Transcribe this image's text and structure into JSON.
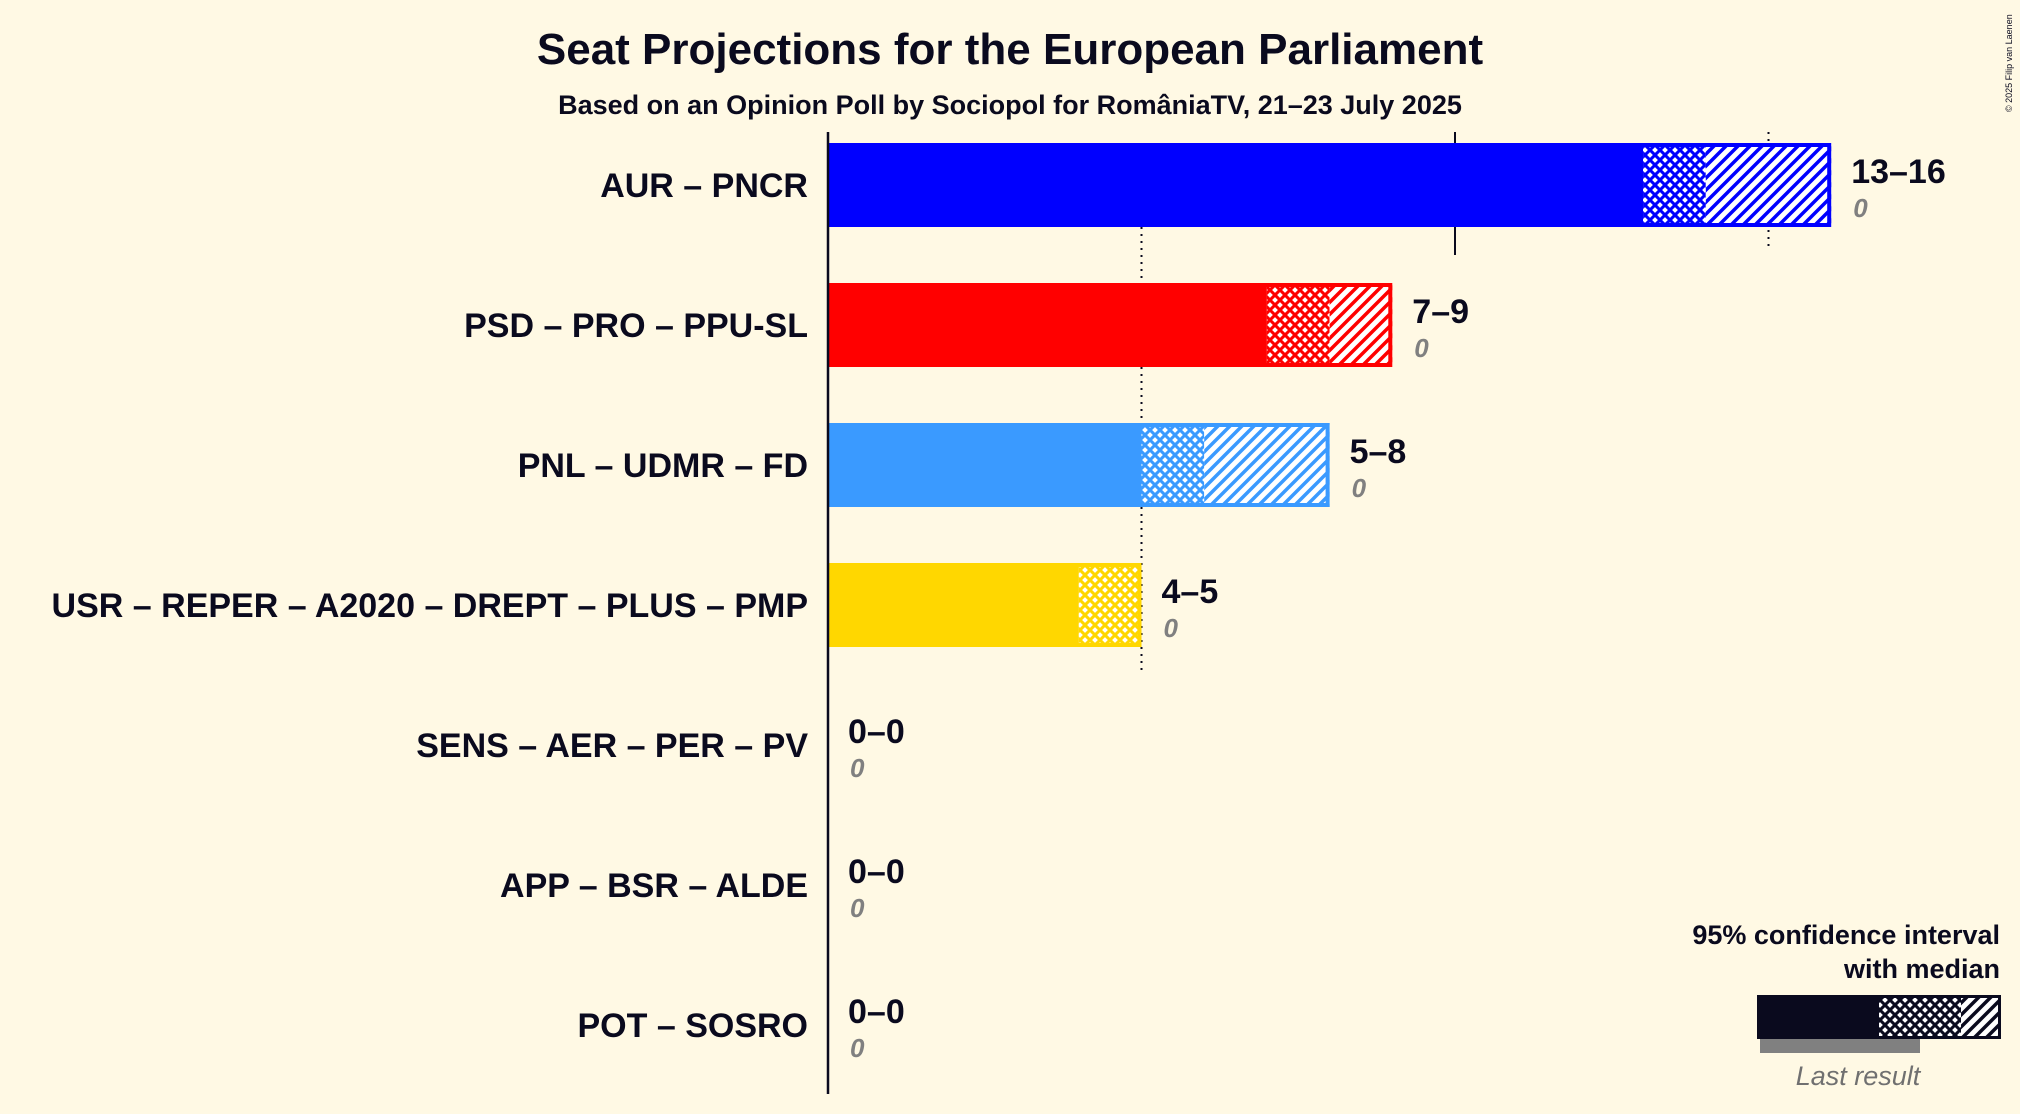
{
  "copyright": "© 2025 Filip van Laenen",
  "chart_data": {
    "type": "bar",
    "orientation": "horizontal",
    "title": "Seat Projections for the European Parliament",
    "subtitle": "Based on an Opinion Poll by Sociopol for RomâniaTV, 21–23 July 2025",
    "gridlines": [
      5,
      10,
      15
    ],
    "xlim": [
      0,
      16
    ],
    "series": [
      {
        "party": "AUR – PNCR",
        "color": "#0000FF",
        "ci_low": 13,
        "median": 14,
        "ci_high": 16,
        "range_label": "13–16",
        "last_result": 0,
        "last_label": "0"
      },
      {
        "party": "PSD – PRO – PPU-SL",
        "color": "#FF0000",
        "ci_low": 7,
        "median": 8,
        "ci_high": 9,
        "range_label": "7–9",
        "last_result": 0,
        "last_label": "0"
      },
      {
        "party": "PNL – UDMR – FD",
        "color": "#3A9AFF",
        "ci_low": 5,
        "median": 6,
        "ci_high": 8,
        "range_label": "5–8",
        "last_result": 0,
        "last_label": "0"
      },
      {
        "party": "USR – REPER – A2020 – DREPT – PLUS – PMP",
        "color": "#FFD700",
        "ci_low": 4,
        "median": 5,
        "ci_high": 5,
        "range_label": "4–5",
        "last_result": 0,
        "last_label": "0"
      },
      {
        "party": "SENS – AER – PER – PV",
        "color": "#808080",
        "ci_low": 0,
        "median": 0,
        "ci_high": 0,
        "range_label": "0–0",
        "last_result": 0,
        "last_label": "0"
      },
      {
        "party": "APP – BSR – ALDE",
        "color": "#808080",
        "ci_low": 0,
        "median": 0,
        "ci_high": 0,
        "range_label": "0–0",
        "last_result": 0,
        "last_label": "0"
      },
      {
        "party": "POT – SOSRO",
        "color": "#808080",
        "ci_low": 0,
        "median": 0,
        "ci_high": 0,
        "range_label": "0–0",
        "last_result": 0,
        "last_label": "0"
      }
    ],
    "legend": {
      "line1": "95% confidence interval",
      "line2": "with median",
      "last_result_label": "Last result",
      "color": "#0A0A1E",
      "last_color": "#808080"
    }
  }
}
